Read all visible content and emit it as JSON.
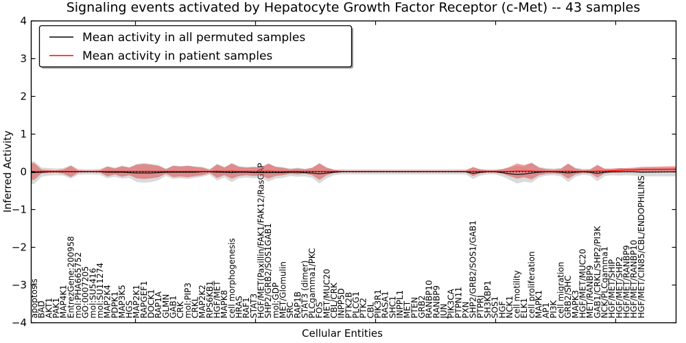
{
  "title": "Signaling events activated by Hepatocyte Growth Factor Receptor (c-Met) -- 43 samples",
  "legend": {
    "items": [
      {
        "label": "Mean activity in all permuted samples",
        "color": "#000000"
      },
      {
        "label": "Mean activity in patient samples",
        "color": "#ff0000"
      }
    ]
  },
  "axes": {
    "xlabel": "Cellular Entities",
    "ylabel": "Inferred Activity",
    "yticks": [
      "4",
      "3",
      "2",
      "1",
      "0",
      "−1",
      "−2",
      "−3",
      "−4"
    ],
    "ylim": [
      -4,
      4
    ]
  },
  "chart_data": {
    "type": "line",
    "title": "Signaling events activated by Hepatocyte Growth Factor Receptor (c-Met) -- 43 samples",
    "xlabel": "Cellular Entities",
    "ylabel": "Inferred Activity",
    "ylim": [
      -4,
      4
    ],
    "grid": false,
    "legend_position": "upper left",
    "zero_reference_line": 0,
    "categories": [
      "apoptosis",
      "BAD",
      "AKT1",
      "PAK1",
      "MAP4K1",
      "EntrezGene:200958",
      "mol:PHA665752",
      "GO:0007205",
      "mol:SU5416",
      "mol:SU11274",
      "MAP2K4",
      "PDPK1",
      "MAP3K5",
      "HGS",
      "MAP2K1",
      "RAPGEF1",
      "DOCK1",
      "RAP1A",
      "GLMN",
      "GAB1",
      "CRK",
      "mol:PIP3",
      "CRKL",
      "MAP2K2",
      "RPS6KB1",
      "HGF/MET",
      "MAPK8",
      "cell morphogenesis",
      "HRAS",
      "RAF1",
      "STAT3",
      "HGF/MET(Paxillin/FAK1/FAK12/RasGAP",
      "SHP2/GRB2/SOS1GAB1",
      "mol:GDP",
      "MET/Glomulin",
      "SRC",
      "RAP1B",
      "STAT3 (dimer)",
      "PLCgamma1/PKC",
      "FOS",
      "MET/MUC20",
      "CBL/CRK",
      "INPP5D",
      "PTK2B",
      "PLCG1",
      "PTK2",
      "CBL",
      "PIK3R1",
      "RASA1",
      "SHC1",
      "INPPL1",
      "MET",
      "PTEN",
      "GRB2",
      "RANBP10",
      "RANBP9",
      "JUN",
      "PIK3CA",
      "PTPN11",
      "PXN",
      "SHP2/GRB2/SOS1/GAB1",
      "PTPRJ",
      "SH3KBP1",
      "SOS1",
      "HGF",
      "NCK1",
      "cell motility",
      "ELK1",
      "cell proliferation",
      "MAPK1",
      "AP1",
      "PI3K",
      "cell migration",
      "GRB2/SHC",
      "MAPK3",
      "HGF/MET/MUC20",
      "MET/RANBP9",
      "GAB1/CRKL/SHP2/PI3K",
      "NCK/PLCgamma1",
      "HGF/MET/SHIP",
      "HGF/MET/SHP2",
      "HGF/MET/RANBP9",
      "HGF/MET/RANBP10",
      "HGF/MET/CIN85/CBL/ENDOPHILINS"
    ],
    "series": [
      {
        "name": "Mean activity in all permuted samples",
        "color": "#000000",
        "values": [
          -0.02,
          -0.01,
          0,
          0,
          0,
          0,
          0,
          0,
          0,
          0,
          -0.01,
          -0.01,
          -0.01,
          -0.02,
          -0.03,
          -0.03,
          -0.03,
          -0.02,
          -0.01,
          -0.01,
          -0.01,
          -0.01,
          -0.01,
          0,
          0,
          -0.01,
          -0.01,
          -0.02,
          -0.01,
          -0.01,
          -0.02,
          -0.02,
          -0.02,
          -0.02,
          -0.02,
          -0.01,
          -0.01,
          -0.02,
          -0.03,
          -0.05,
          -0.03,
          -0.01,
          0,
          0,
          0,
          0,
          0,
          0,
          0,
          0,
          0,
          0,
          0,
          0,
          0,
          0,
          0,
          0,
          0,
          0,
          -0.04,
          -0.01,
          0,
          0,
          -0.02,
          -0.05,
          -0.07,
          -0.06,
          -0.03,
          -0.01,
          0,
          0,
          -0.01,
          -0.03,
          -0.01,
          0,
          -0.01,
          -0.04,
          -0.01,
          0,
          0,
          0,
          0,
          -0.01
        ]
      },
      {
        "name": "Mean activity in patient samples",
        "color": "#ff0000",
        "values": [
          0.01,
          0.01,
          0.01,
          0.01,
          0.01,
          0.01,
          0.01,
          0.01,
          0.01,
          0.01,
          0.01,
          0.01,
          0.01,
          0.01,
          0.01,
          0.01,
          0.01,
          0.01,
          0.01,
          0.01,
          0.01,
          0.01,
          0.01,
          0.01,
          0.01,
          0.02,
          0.01,
          0.02,
          0.01,
          0.01,
          0.01,
          0.01,
          0.02,
          0.01,
          0.01,
          0.01,
          0.01,
          0.01,
          0.01,
          0.01,
          0.01,
          0.01,
          0.01,
          0.01,
          0.01,
          0.01,
          0.01,
          0.01,
          0.01,
          0.01,
          0.01,
          0.01,
          0.01,
          0.01,
          0.01,
          0.01,
          0.01,
          0.01,
          0.01,
          0.01,
          0.01,
          0.01,
          0.01,
          0.01,
          0.01,
          0.01,
          0.02,
          0.02,
          0.02,
          0.01,
          0.01,
          0.01,
          0.01,
          0.02,
          0.01,
          0.01,
          0.01,
          0.02,
          0.02,
          0.03,
          0.04,
          0.05,
          0.05,
          0.06
        ]
      }
    ],
    "bands": [
      {
        "name": "permuted sample range",
        "color": "rgba(150,150,150,0.35)",
        "center_series": 0,
        "half_widths": [
          0.3,
          0.12,
          0.1,
          0.09,
          0.1,
          0.18,
          0.08,
          0.07,
          0.07,
          0.08,
          0.16,
          0.12,
          0.17,
          0.14,
          0.24,
          0.26,
          0.24,
          0.2,
          0.1,
          0.18,
          0.16,
          0.18,
          0.15,
          0.13,
          0.08,
          0.22,
          0.14,
          0.25,
          0.16,
          0.14,
          0.15,
          0.14,
          0.24,
          0.16,
          0.14,
          0.1,
          0.12,
          0.1,
          0.13,
          0.26,
          0.14,
          0.08,
          0.07,
          0.07,
          0.07,
          0.07,
          0.07,
          0.07,
          0.07,
          0.07,
          0.07,
          0.07,
          0.07,
          0.07,
          0.07,
          0.07,
          0.07,
          0.07,
          0.07,
          0.07,
          0.15,
          0.09,
          0.07,
          0.07,
          0.1,
          0.16,
          0.24,
          0.2,
          0.26,
          0.14,
          0.1,
          0.09,
          0.11,
          0.24,
          0.12,
          0.08,
          0.09,
          0.21,
          0.1,
          0.09,
          0.1,
          0.09,
          0.1,
          0.11
        ]
      },
      {
        "name": "patient sample range",
        "color": "rgba(222,45,45,0.45)",
        "center_series": 1,
        "half_widths": [
          0.22,
          0.05,
          0.04,
          0.03,
          0.06,
          0.15,
          0.03,
          0.02,
          0.02,
          0.03,
          0.13,
          0.08,
          0.14,
          0.1,
          0.18,
          0.2,
          0.18,
          0.15,
          0.06,
          0.15,
          0.13,
          0.15,
          0.12,
          0.1,
          0.04,
          0.18,
          0.1,
          0.2,
          0.12,
          0.1,
          0.12,
          0.1,
          0.2,
          0.12,
          0.1,
          0.06,
          0.08,
          0.06,
          0.1,
          0.22,
          0.1,
          0.04,
          0.02,
          0.015,
          0.015,
          0.015,
          0.015,
          0.015,
          0.015,
          0.015,
          0.015,
          0.015,
          0.015,
          0.015,
          0.015,
          0.015,
          0.015,
          0.015,
          0.02,
          0.02,
          0.12,
          0.05,
          0.03,
          0.03,
          0.06,
          0.12,
          0.2,
          0.16,
          0.22,
          0.1,
          0.06,
          0.05,
          0.07,
          0.2,
          0.08,
          0.04,
          0.05,
          0.17,
          0.06,
          0.05,
          0.06,
          0.05,
          0.06,
          0.07
        ]
      }
    ],
    "right_edge": {
      "permuted_mean": 0,
      "patient_mean": 0.07,
      "permuted_hw": 0.12,
      "patient_hw": 0.08
    }
  }
}
